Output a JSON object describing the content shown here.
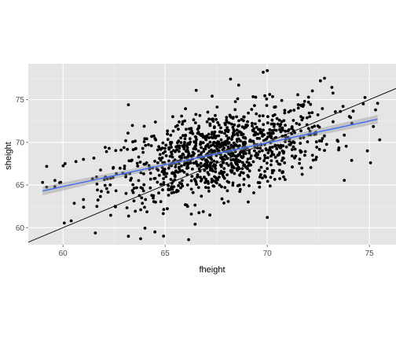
{
  "chart_data": {
    "type": "scatter",
    "title": "",
    "xlabel": "fheight",
    "ylabel": "sheight",
    "xlim": [
      58.3,
      76.3
    ],
    "ylim": [
      58.0,
      79.2
    ],
    "x_ticks": [
      60,
      65,
      70,
      75
    ],
    "y_ticks": [
      60,
      65,
      70,
      75
    ],
    "x_tick_labels": [
      "60",
      "65",
      "70",
      "75"
    ],
    "y_tick_labels": [
      "60",
      "65",
      "70",
      "75"
    ],
    "grid": true,
    "legend": "none",
    "colors": {
      "panel_bg": "#E5E5E5",
      "grid_major": "#FFFFFF",
      "grid_minor": "#F2F2F2",
      "points": "#000000",
      "smooth_line": "#3366FF",
      "confidence_band": "#999999",
      "reference_line": "#000000",
      "tick_text": "#4D4D4D"
    },
    "reference_line": {
      "label": "",
      "slope": 1,
      "intercept": 0
    },
    "smooth": {
      "method": "linear fit with confidence band",
      "x": [
        59.0,
        75.4
      ],
      "y": [
        64.3,
        72.7
      ],
      "band_halfwidth": [
        0.5,
        0.2,
        0.5
      ]
    },
    "point_cloud": {
      "n_points": 1078,
      "x_mean": 67.7,
      "x_sd": 2.7,
      "y_mean": 68.7,
      "y_sd": 2.8,
      "slope": 0.51
    },
    "notable_points": [
      {
        "x": 59.0,
        "y": 65.3
      },
      {
        "x": 59.6,
        "y": 64.8
      },
      {
        "x": 60.1,
        "y": 67.5
      },
      {
        "x": 60.4,
        "y": 60.8
      },
      {
        "x": 61.0,
        "y": 63.3
      },
      {
        "x": 61.0,
        "y": 68.0
      },
      {
        "x": 63.2,
        "y": 74.4
      },
      {
        "x": 63.2,
        "y": 59.0
      },
      {
        "x": 63.8,
        "y": 58.7
      },
      {
        "x": 64.5,
        "y": 59.5
      },
      {
        "x": 67.3,
        "y": 75.4
      },
      {
        "x": 68.2,
        "y": 77.4
      },
      {
        "x": 68.6,
        "y": 76.7
      },
      {
        "x": 69.8,
        "y": 78.2
      },
      {
        "x": 70.0,
        "y": 78.4
      },
      {
        "x": 70.0,
        "y": 61.2
      },
      {
        "x": 72.6,
        "y": 77.2
      },
      {
        "x": 72.8,
        "y": 77.5
      },
      {
        "x": 74.7,
        "y": 74.5
      },
      {
        "x": 74.9,
        "y": 69.0
      },
      {
        "x": 75.3,
        "y": 73.8
      },
      {
        "x": 75.5,
        "y": 70.3
      }
    ]
  }
}
